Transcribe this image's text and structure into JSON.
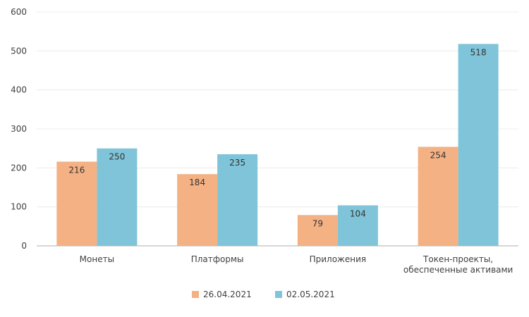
{
  "chart_data": {
    "type": "bar",
    "title": "",
    "xlabel": "",
    "ylabel": "",
    "ylim": [
      0,
      600
    ],
    "yticks": [
      0,
      100,
      200,
      300,
      400,
      500,
      600
    ],
    "grid": true,
    "legend_position": "bottom",
    "categories": [
      [
        "Монеты"
      ],
      [
        "Платформы"
      ],
      [
        "Приложения"
      ],
      [
        "Токен-проекты,",
        "обеспеченные активами"
      ]
    ],
    "series": [
      {
        "name": "26.04.2021",
        "color": "#F4B183",
        "values": [
          216,
          184,
          79,
          254
        ]
      },
      {
        "name": "02.05.2021",
        "color": "#7FC4D8",
        "values": [
          250,
          235,
          104,
          518
        ]
      }
    ]
  }
}
